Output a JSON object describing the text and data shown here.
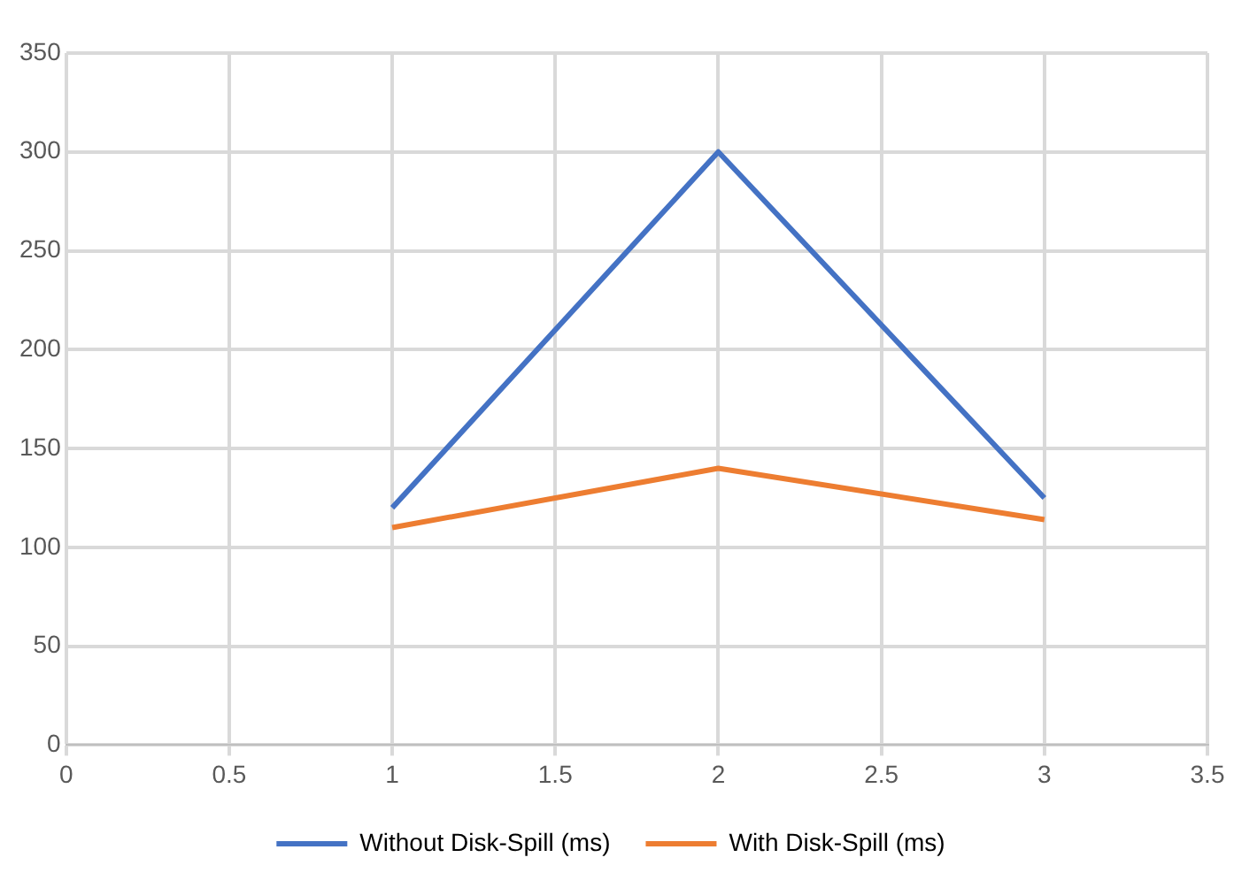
{
  "chart_data": {
    "type": "line",
    "x": [
      1,
      2,
      3
    ],
    "series": [
      {
        "name": "Without Disk-Spill (ms)",
        "color": "#4472c4",
        "values": [
          120,
          300,
          125
        ]
      },
      {
        "name": "With Disk-Spill (ms)",
        "color": "#ed7d31",
        "values": [
          110,
          140,
          114
        ]
      }
    ],
    "xlim": [
      0,
      3.5
    ],
    "xticks": [
      0,
      0.5,
      1,
      1.5,
      2,
      2.5,
      3,
      3.5
    ],
    "ylim": [
      0,
      350
    ],
    "yticks": [
      0,
      50,
      100,
      150,
      200,
      250,
      300,
      350
    ],
    "grid": true,
    "legend": "bottom",
    "marker": "none",
    "line_style": "solid"
  }
}
